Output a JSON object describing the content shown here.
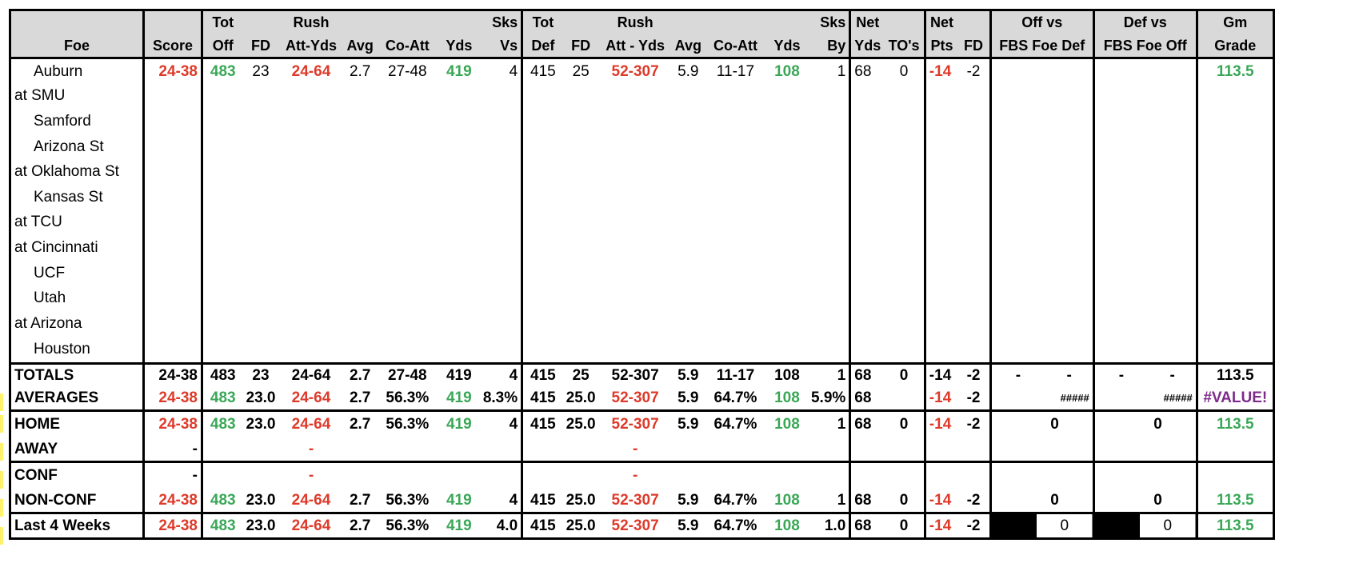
{
  "header": {
    "top": [
      "",
      "",
      "Tot",
      "",
      "Rush",
      "",
      "",
      "",
      "Sks",
      "Tot",
      "",
      "Rush",
      "",
      "",
      "",
      "Sks",
      "Net",
      "",
      "Net",
      "",
      "Off vs",
      "Def vs",
      "Gm"
    ],
    "bottom": [
      "Foe",
      "Score",
      "Off",
      "FD",
      "Att-Yds",
      "Avg",
      "Co-Att",
      "Yds",
      "Vs",
      "Def",
      "FD",
      "Att - Yds",
      "Avg",
      "Co-Att",
      "Yds",
      "By",
      "Yds",
      "TO's",
      "Pts",
      "FD",
      "FBS Foe Def",
      "FBS Foe Off",
      "Grade"
    ]
  },
  "games": [
    {
      "foe": "Auburn",
      "indent": true,
      "score": "24-38",
      "tot_off": "483",
      "fd": "23",
      "rush": "24-64",
      "avg": "2.7",
      "co_att": "27-48",
      "yds": "419",
      "sks_vs": "4",
      "tot_def": "415",
      "dfd": "25",
      "drush": "52-307",
      "davg": "5.9",
      "dco_att": "11-17",
      "dyds": "108",
      "sks_by": "1",
      "net_yds": "68",
      "tos": "0",
      "net_pts": "-14",
      "net_fd": "-2",
      "off_vs": "",
      "def_vs": "",
      "grade": "113.5"
    },
    {
      "foe": "at SMU",
      "indent": false
    },
    {
      "foe": "Samford",
      "indent": true
    },
    {
      "foe": "Arizona St",
      "indent": true
    },
    {
      "foe": "at Oklahoma St",
      "indent": false
    },
    {
      "foe": "Kansas St",
      "indent": true
    },
    {
      "foe": "at TCU",
      "indent": false
    },
    {
      "foe": "at Cincinnati",
      "indent": false
    },
    {
      "foe": "UCF",
      "indent": true
    },
    {
      "foe": "Utah",
      "indent": true
    },
    {
      "foe": "at Arizona",
      "indent": false
    },
    {
      "foe": "Houston",
      "indent": true
    }
  ],
  "totals": {
    "label": "TOTALS",
    "score": "24-38",
    "tot_off": "483",
    "fd": "23",
    "rush": "24-64",
    "avg": "2.7",
    "co_att": "27-48",
    "yds": "419",
    "sks_vs": "4",
    "tot_def": "415",
    "dfd": "25",
    "drush": "52-307",
    "davg": "5.9",
    "dco_att": "11-17",
    "dyds": "108",
    "sks_by": "1",
    "net_yds": "68",
    "tos": "0",
    "net_pts": "-14",
    "net_fd": "-2",
    "off_a": "-",
    "off_b": "-",
    "def_a": "-",
    "def_b": "-",
    "grade": "113.5"
  },
  "averages": {
    "label": "AVERAGES",
    "score": "24-38",
    "tot_off": "483",
    "fd": "23.0",
    "rush": "24-64",
    "avg": "2.7",
    "co_att": "56.3%",
    "yds": "419",
    "sks_vs": "8.3%",
    "tot_def": "415",
    "dfd": "25.0",
    "drush": "52-307",
    "davg": "5.9",
    "dco_att": "64.7%",
    "dyds": "108",
    "sks_by": "5.9%",
    "net_yds": "68",
    "tos": "",
    "net_pts": "-14",
    "net_fd": "-2",
    "off_vs": "#####",
    "def_vs": "#####",
    "grade": "#VALUE!"
  },
  "home": {
    "label": "HOME",
    "score": "24-38",
    "tot_off": "483",
    "fd": "23.0",
    "rush": "24-64",
    "avg": "2.7",
    "co_att": "56.3%",
    "yds": "419",
    "sks_vs": "4",
    "tot_def": "415",
    "dfd": "25.0",
    "drush": "52-307",
    "davg": "5.9",
    "dco_att": "64.7%",
    "dyds": "108",
    "sks_by": "1",
    "net_yds": "68",
    "tos": "0",
    "net_pts": "-14",
    "net_fd": "-2",
    "off_vs": "0",
    "def_vs": "0",
    "grade": "113.5"
  },
  "away": {
    "label": "AWAY",
    "score": "-",
    "rush": "-",
    "drush": "-"
  },
  "conf": {
    "label": "CONF",
    "score": "-",
    "rush": "-",
    "drush": "-"
  },
  "nonconf": {
    "label": "NON-CONF",
    "score": "24-38",
    "tot_off": "483",
    "fd": "23.0",
    "rush": "24-64",
    "avg": "2.7",
    "co_att": "56.3%",
    "yds": "419",
    "sks_vs": "4",
    "tot_def": "415",
    "dfd": "25.0",
    "drush": "52-307",
    "davg": "5.9",
    "dco_att": "64.7%",
    "dyds": "108",
    "sks_by": "1",
    "net_yds": "68",
    "tos": "0",
    "net_pts": "-14",
    "net_fd": "-2",
    "off_vs": "0",
    "def_vs": "0",
    "grade": "113.5"
  },
  "last4": {
    "label": "Last 4 Weeks",
    "score": "24-38",
    "tot_off": "483",
    "fd": "23.0",
    "rush": "24-64",
    "avg": "2.7",
    "co_att": "56.3%",
    "yds": "419",
    "sks_vs": "4.0",
    "tot_def": "415",
    "dfd": "25.0",
    "drush": "52-307",
    "davg": "5.9",
    "dco_att": "64.7%",
    "dyds": "108",
    "sks_by": "1.0",
    "net_yds": "68",
    "tos": "0",
    "net_pts": "-14",
    "net_fd": "-2",
    "off_vs": "0",
    "def_vs": "0",
    "grade": "113.5"
  },
  "colors": {
    "good": "#3aa757",
    "bad": "#de3a2a",
    "error": "#7d2b8b",
    "header_bg": "#d9d9d9",
    "row_marker": "#fff26b"
  }
}
